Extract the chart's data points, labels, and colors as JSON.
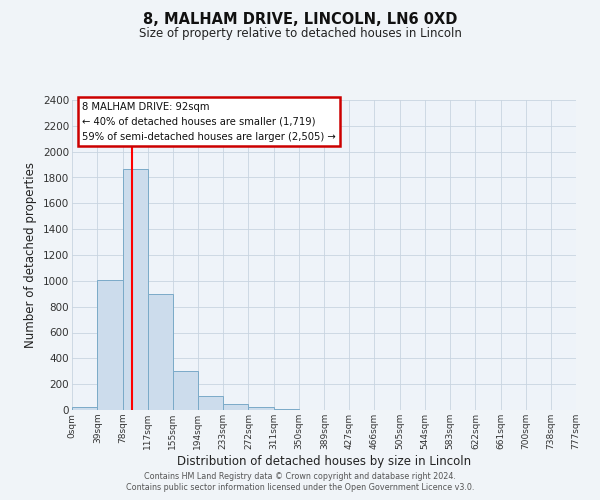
{
  "title": "8, MALHAM DRIVE, LINCOLN, LN6 0XD",
  "subtitle": "Size of property relative to detached houses in Lincoln",
  "xlabel": "Distribution of detached houses by size in Lincoln",
  "ylabel": "Number of detached properties",
  "bar_color": "#ccdcec",
  "bar_edge_color": "#7aaac8",
  "background_color": "#f0f4f8",
  "plot_bg_color": "#eef3f9",
  "grid_color": "#c8d4e0",
  "red_line_x": 92,
  "annotation_title": "8 MALHAM DRIVE: 92sqm",
  "annotation_line1": "← 40% of detached houses are smaller (1,719)",
  "annotation_line2": "59% of semi-detached houses are larger (2,505) →",
  "annotation_box_color": "#ffffff",
  "annotation_box_edge": "#cc0000",
  "bins": [
    0,
    39,
    78,
    117,
    155,
    194,
    233,
    272,
    311,
    350,
    389,
    427,
    466,
    505,
    544,
    583,
    622,
    661,
    700,
    738,
    777
  ],
  "counts": [
    20,
    1008,
    1868,
    900,
    300,
    105,
    45,
    20,
    5,
    0,
    0,
    0,
    0,
    0,
    0,
    0,
    0,
    0,
    0,
    0
  ],
  "xlim": [
    0,
    777
  ],
  "ylim": [
    0,
    2400
  ],
  "yticks": [
    0,
    200,
    400,
    600,
    800,
    1000,
    1200,
    1400,
    1600,
    1800,
    2000,
    2200,
    2400
  ],
  "xtick_labels": [
    "0sqm",
    "39sqm",
    "78sqm",
    "117sqm",
    "155sqm",
    "194sqm",
    "233sqm",
    "272sqm",
    "311sqm",
    "350sqm",
    "389sqm",
    "427sqm",
    "466sqm",
    "505sqm",
    "544sqm",
    "583sqm",
    "622sqm",
    "661sqm",
    "700sqm",
    "738sqm",
    "777sqm"
  ],
  "footer_line1": "Contains HM Land Registry data © Crown copyright and database right 2024.",
  "footer_line2": "Contains public sector information licensed under the Open Government Licence v3.0."
}
